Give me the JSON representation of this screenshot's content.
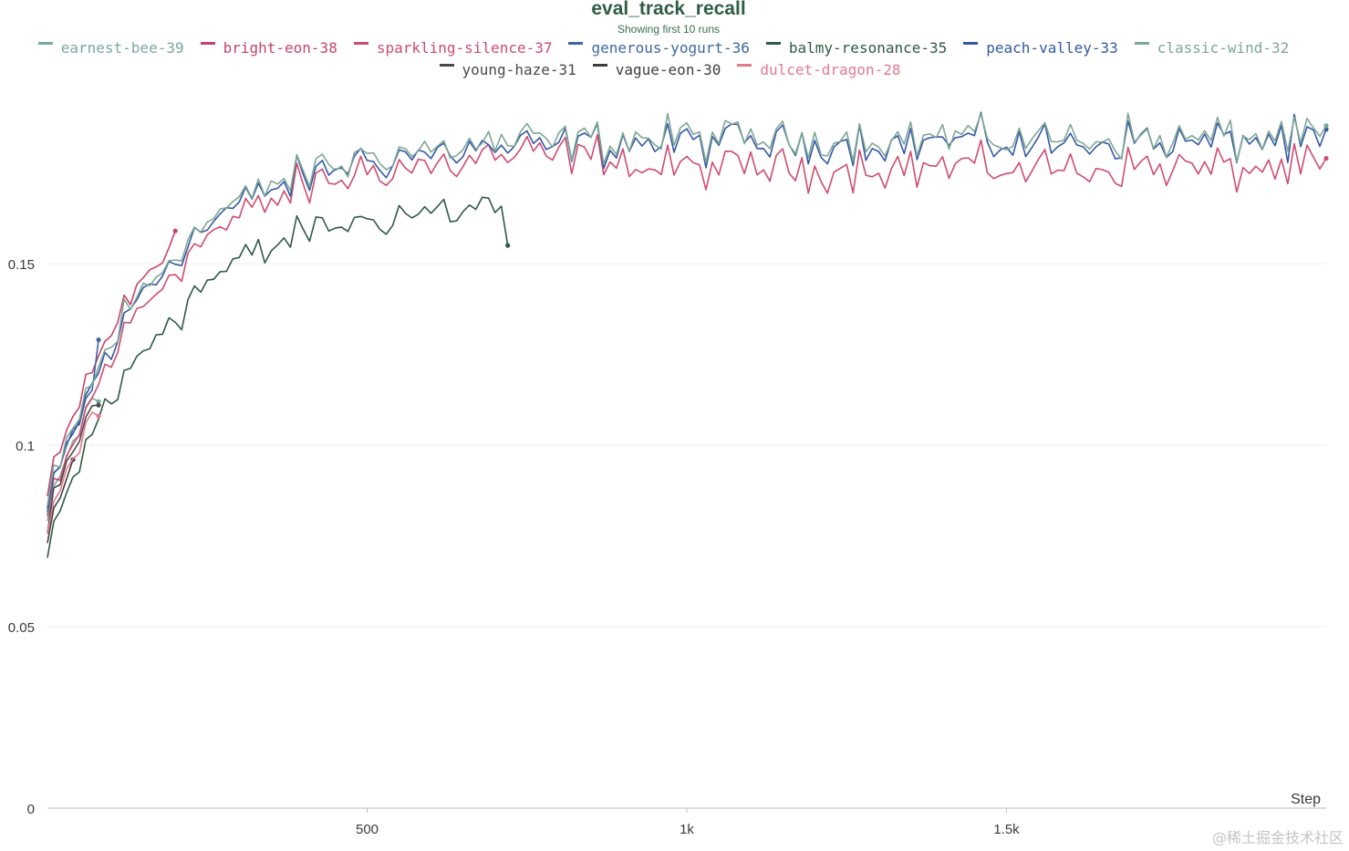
{
  "chart_data": {
    "type": "line",
    "title": "eval_track_recall",
    "subtitle": "Showing first 10 runs",
    "xlabel": "Step",
    "ylabel": "",
    "xlim": [
      0,
      2000
    ],
    "ylim": [
      0,
      0.2
    ],
    "x_ticks": [
      {
        "v": 500,
        "label": "500"
      },
      {
        "v": 1000,
        "label": "1k"
      },
      {
        "v": 1500,
        "label": "1.5k"
      }
    ],
    "y_ticks": [
      {
        "v": 0,
        "label": "0"
      },
      {
        "v": 0.05,
        "label": "0.05"
      },
      {
        "v": 0.1,
        "label": "0.1"
      },
      {
        "v": 0.15,
        "label": "0.15"
      }
    ],
    "gridlines": true,
    "legend_position": "top-center",
    "series": [
      {
        "name": "earnest-bee-39",
        "color": "#7aa7a0",
        "x_end": 80,
        "end_value": 0.112
      },
      {
        "name": "bright-eon-38",
        "color": "#c8436a",
        "x_end": 200,
        "end_value": 0.159
      },
      {
        "name": "sparkling-silence-37",
        "color": "#d04b6f",
        "x_end": 2000,
        "end_value": 0.179
      },
      {
        "name": "generous-yogurt-36",
        "color": "#3d67a3",
        "x_end": 80,
        "end_value": 0.129
      },
      {
        "name": "balmy-resonance-35",
        "color": "#2f5a44",
        "x_end": 720,
        "end_value": 0.155
      },
      {
        "name": "peach-valley-33",
        "color": "#3458a8",
        "x_end": 2000,
        "end_value": 0.187
      },
      {
        "name": "classic-wind-32",
        "color": "#7ea794",
        "x_end": 2000,
        "end_value": 0.188
      },
      {
        "name": "young-haze-31",
        "color": "#494949",
        "x_end": 80,
        "end_value": 0.111
      },
      {
        "name": "vague-eon-30",
        "color": "#3d3d3d",
        "x_end": 40,
        "end_value": 0.096
      },
      {
        "name": "dulcet-dragon-28",
        "color": "#e4798f",
        "x_end": 80,
        "end_value": 0.108
      }
    ]
  },
  "watermark": "@稀土掘金技术社区"
}
